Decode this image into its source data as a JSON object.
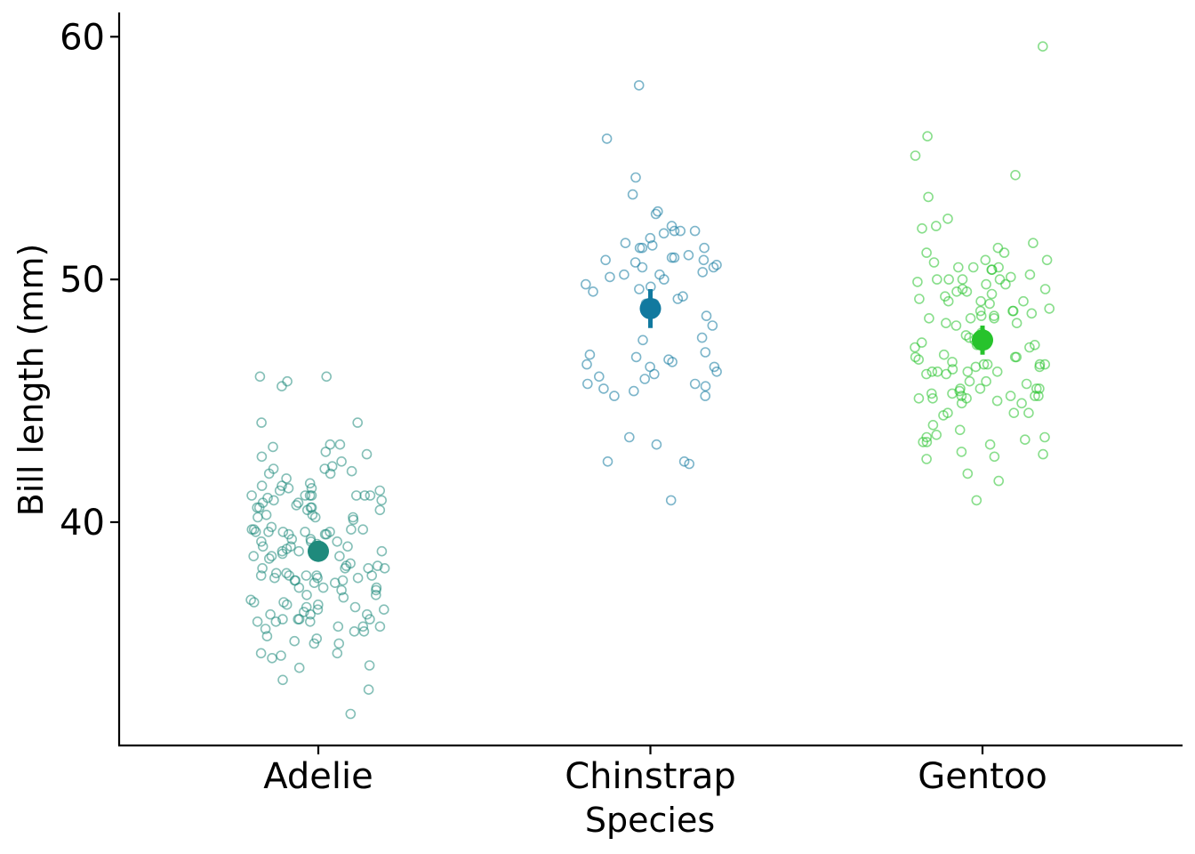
{
  "chart_data": {
    "type": "scatter",
    "title": "",
    "xlabel": "Species",
    "ylabel": "Bill length (mm)",
    "categories": [
      "Adelie",
      "Chinstrap",
      "Gentoo"
    ],
    "ylim": [
      30.8,
      61
    ],
    "yticks": [
      40,
      50,
      60
    ],
    "grid": false,
    "legend": "none",
    "summary": [
      {
        "category": "Adelie",
        "mean": 38.8,
        "lower": 38.4,
        "upper": 39.2
      },
      {
        "category": "Chinstrap",
        "mean": 48.8,
        "lower": 48.0,
        "upper": 49.6
      },
      {
        "category": "Gentoo",
        "mean": 47.5,
        "lower": 46.9,
        "upper": 48.1
      }
    ],
    "series": [
      {
        "category": "Adelie",
        "color": "#1f8a7c",
        "values": [
          39.1,
          39.5,
          40.3,
          36.7,
          39.3,
          38.9,
          39.2,
          34.1,
          42.0,
          37.8,
          37.8,
          41.1,
          38.6,
          34.6,
          36.6,
          38.7,
          42.5,
          34.4,
          46.0,
          37.8,
          37.7,
          35.9,
          38.2,
          38.8,
          35.3,
          40.6,
          40.5,
          37.9,
          40.5,
          39.5,
          37.2,
          39.5,
          40.9,
          36.4,
          39.2,
          38.8,
          42.2,
          37.6,
          39.8,
          36.5,
          40.8,
          36.0,
          44.1,
          37.0,
          39.6,
          41.1,
          37.5,
          36.0,
          42.3,
          39.6,
          40.1,
          35.0,
          42.0,
          34.5,
          41.4,
          39.0,
          40.6,
          36.5,
          37.6,
          35.7,
          41.3,
          37.6,
          41.1,
          36.4,
          41.6,
          35.5,
          41.1,
          35.9,
          41.8,
          33.5,
          39.7,
          39.6,
          45.8,
          35.5,
          42.8,
          40.9,
          37.2,
          36.2,
          42.1,
          34.6,
          42.9,
          36.7,
          35.1,
          37.3,
          41.3,
          36.3,
          36.9,
          38.3,
          38.9,
          35.7,
          41.1,
          34.0,
          39.6,
          36.2,
          40.8,
          38.1,
          40.3,
          33.1,
          43.2,
          35.0,
          41.0,
          37.7,
          37.8,
          37.9,
          39.7,
          38.6,
          38.2,
          38.1,
          43.2,
          38.1,
          45.6,
          39.7,
          42.2,
          39.6,
          42.7,
          38.6,
          37.3,
          35.7,
          41.1,
          36.2,
          37.7,
          40.2,
          41.4,
          35.2,
          40.6,
          38.8,
          41.5,
          39.0,
          44.1,
          38.5,
          43.1,
          36.8,
          37.5,
          38.1,
          41.1,
          35.6,
          40.2,
          37.0,
          39.7,
          40.2,
          40.6,
          32.1,
          40.7,
          37.3,
          39.0,
          39.2,
          36.6,
          36.0,
          37.8,
          36.0,
          41.5,
          46.0,
          35.9,
          39.3
        ]
      },
      {
        "category": "Chinstrap",
        "color": "#11799f",
        "values": [
          46.5,
          50.0,
          51.3,
          45.4,
          52.7,
          45.2,
          46.1,
          51.3,
          46.0,
          51.3,
          46.6,
          51.7,
          47.0,
          52.0,
          45.9,
          50.5,
          50.3,
          58.0,
          46.4,
          49.2,
          42.4,
          48.5,
          43.2,
          50.6,
          46.7,
          52.0,
          50.5,
          49.5,
          46.4,
          52.8,
          40.9,
          54.2,
          42.5,
          51.0,
          49.7,
          47.5,
          47.6,
          52.0,
          46.9,
          53.5,
          49.0,
          46.2,
          50.9,
          45.5,
          50.9,
          50.8,
          50.1,
          49.0,
          51.5,
          49.8,
          48.1,
          51.4,
          45.7,
          50.7,
          42.5,
          52.2,
          45.2,
          49.3,
          50.2,
          45.6,
          51.9,
          46.8,
          45.7,
          55.8,
          43.5,
          49.6,
          50.8,
          50.2
        ]
      },
      {
        "category": "Gentoo",
        "color": "#27c32c",
        "values": [
          46.1,
          50.0,
          48.7,
          50.0,
          47.6,
          46.5,
          45.4,
          46.7,
          43.3,
          46.8,
          40.9,
          49.0,
          45.5,
          48.4,
          45.8,
          49.3,
          42.0,
          49.2,
          46.2,
          48.7,
          50.2,
          45.1,
          46.5,
          46.3,
          42.9,
          46.1,
          44.5,
          47.8,
          48.2,
          50.0,
          47.3,
          42.8,
          45.1,
          59.6,
          49.1,
          48.4,
          42.6,
          44.4,
          44.0,
          48.7,
          42.7,
          49.6,
          45.3,
          49.6,
          50.5,
          43.6,
          45.5,
          50.5,
          44.9,
          45.2,
          46.6,
          48.5,
          45.1,
          50.1,
          46.5,
          45.0,
          43.8,
          45.5,
          43.2,
          50.4,
          45.3,
          46.2,
          45.7,
          54.3,
          45.8,
          49.8,
          46.2,
          49.5,
          43.5,
          50.7,
          47.7,
          46.4,
          48.2,
          46.5,
          46.4,
          48.6,
          47.5,
          51.1,
          45.2,
          45.2,
          49.1,
          52.5,
          47.4,
          50.0,
          44.9,
          50.8,
          43.4,
          51.3,
          47.5,
          52.1,
          47.5,
          52.2,
          45.5,
          49.5,
          44.5,
          50.8,
          49.4,
          46.9,
          48.4,
          51.1,
          48.5,
          55.9,
          47.2,
          49.1,
          47.3,
          46.8,
          41.7,
          53.4,
          43.3,
          48.1,
          50.5,
          49.8,
          43.5,
          51.5,
          46.2,
          55.1,
          44.5,
          48.8,
          47.2,
          46.8,
          50.4,
          45.2,
          49.9
        ]
      }
    ]
  }
}
